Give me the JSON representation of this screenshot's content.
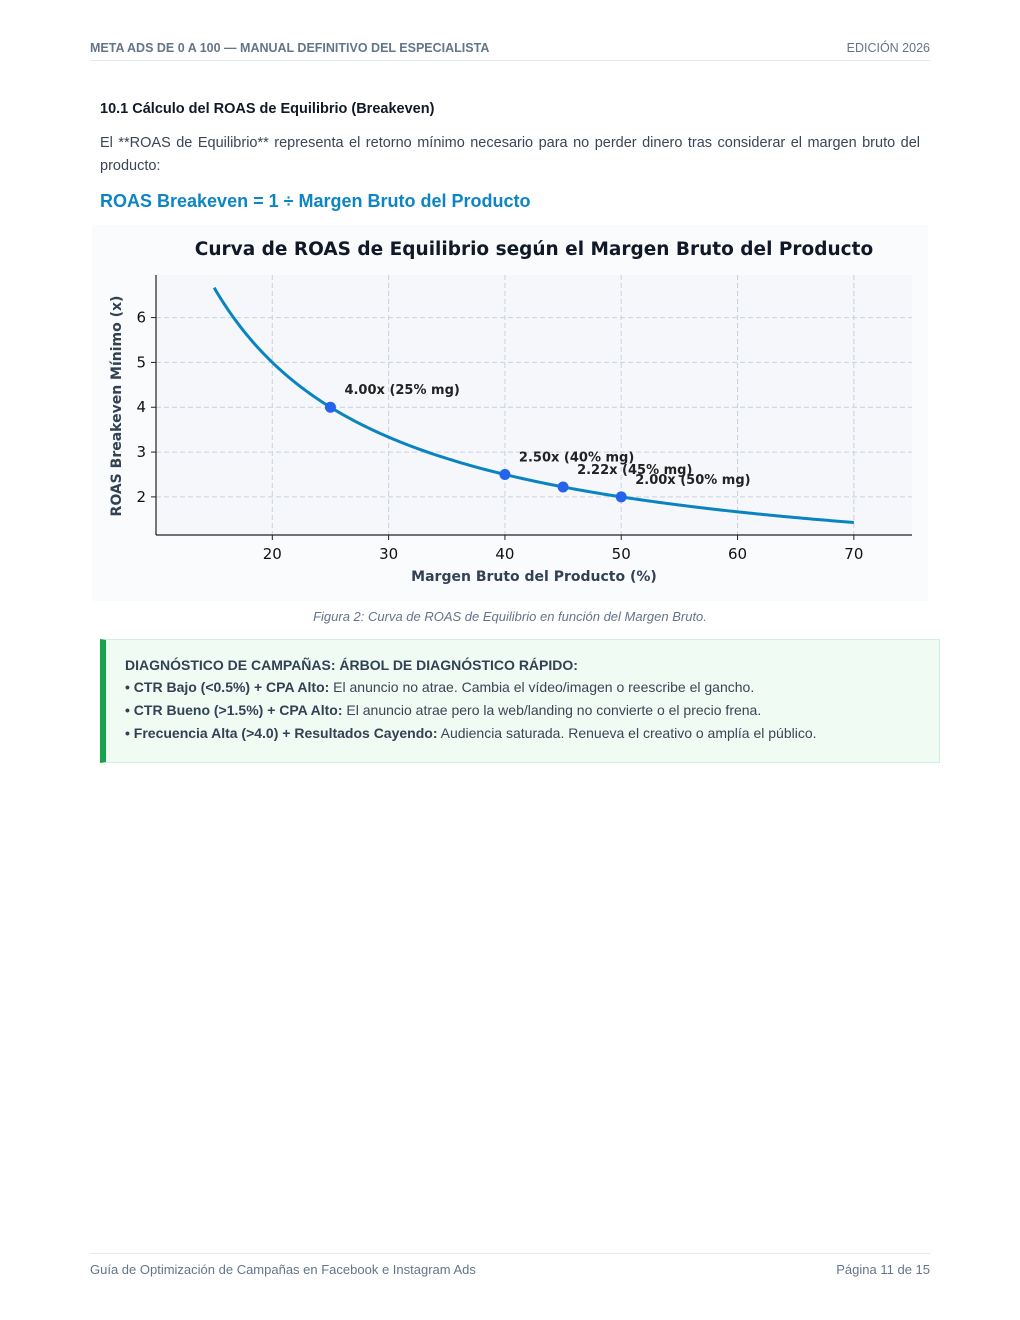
{
  "header": {
    "left": "META ADS DE 0 A 100 — MANUAL DEFINITIVO DEL ESPECIALISTA",
    "right": "EDICIÓN 2026"
  },
  "section": {
    "title": "10.1 Cálculo del ROAS de Equilibrio (Breakeven)",
    "paragraph": "El **ROAS de Equilibrio** representa el retorno mínimo necesario para no perder dinero tras considerar el margen bruto del producto:",
    "formula": "ROAS Breakeven = 1 ÷ Margen Bruto del Producto"
  },
  "chart_data": {
    "type": "line",
    "title": "Curva de ROAS de Equilibrio según el Margen Bruto del Producto",
    "xlabel": "Margen Bruto del Producto (%)",
    "ylabel": "ROAS Breakeven Mínimo (x)",
    "xlim": [
      10,
      75
    ],
    "ylim": [
      1.15,
      6.95
    ],
    "xticks": [
      20,
      30,
      40,
      50,
      60,
      70
    ],
    "yticks": [
      2,
      3,
      4,
      5,
      6
    ],
    "grid": true,
    "curve": {
      "formula": "y = 100 / x",
      "x_range": [
        15,
        70
      ],
      "color": "#0a84c1"
    },
    "points": [
      {
        "x": 25,
        "y": 4.0,
        "label": "4.00x (25% mg)"
      },
      {
        "x": 40,
        "y": 2.5,
        "label": "2.50x (40% mg)"
      },
      {
        "x": 45,
        "y": 2.22,
        "label": "2.22x (45% mg)"
      },
      {
        "x": 50,
        "y": 2.0,
        "label": "2.00x (50% mg)"
      }
    ],
    "point_color": "#2563eb"
  },
  "caption": "Figura 2: Curva de ROAS de Equilibrio en función del Margen Bruto.",
  "callout": {
    "title": "DIAGNÓSTICO DE CAMPAÑAS: ÁRBOL DE DIAGNÓSTICO RÁPIDO:",
    "items": [
      {
        "label": "• CTR Bajo (<0.5%) + CPA Alto:",
        "text": " El anuncio no atrae. Cambia el vídeo/imagen o reescribe el gancho."
      },
      {
        "label": "• CTR Bueno (>1.5%) + CPA Alto:",
        "text": " El anuncio atrae pero la web/landing no convierte o el precio frena."
      },
      {
        "label": "• Frecuencia Alta (>4.0) + Resultados Cayendo:",
        "text": " Audiencia saturada. Renueva el creativo o amplía el público."
      }
    ]
  },
  "footer": {
    "left": "Guía de Optimización de Campañas en Facebook e Instagram Ads",
    "right": "Página 11 de 15"
  }
}
